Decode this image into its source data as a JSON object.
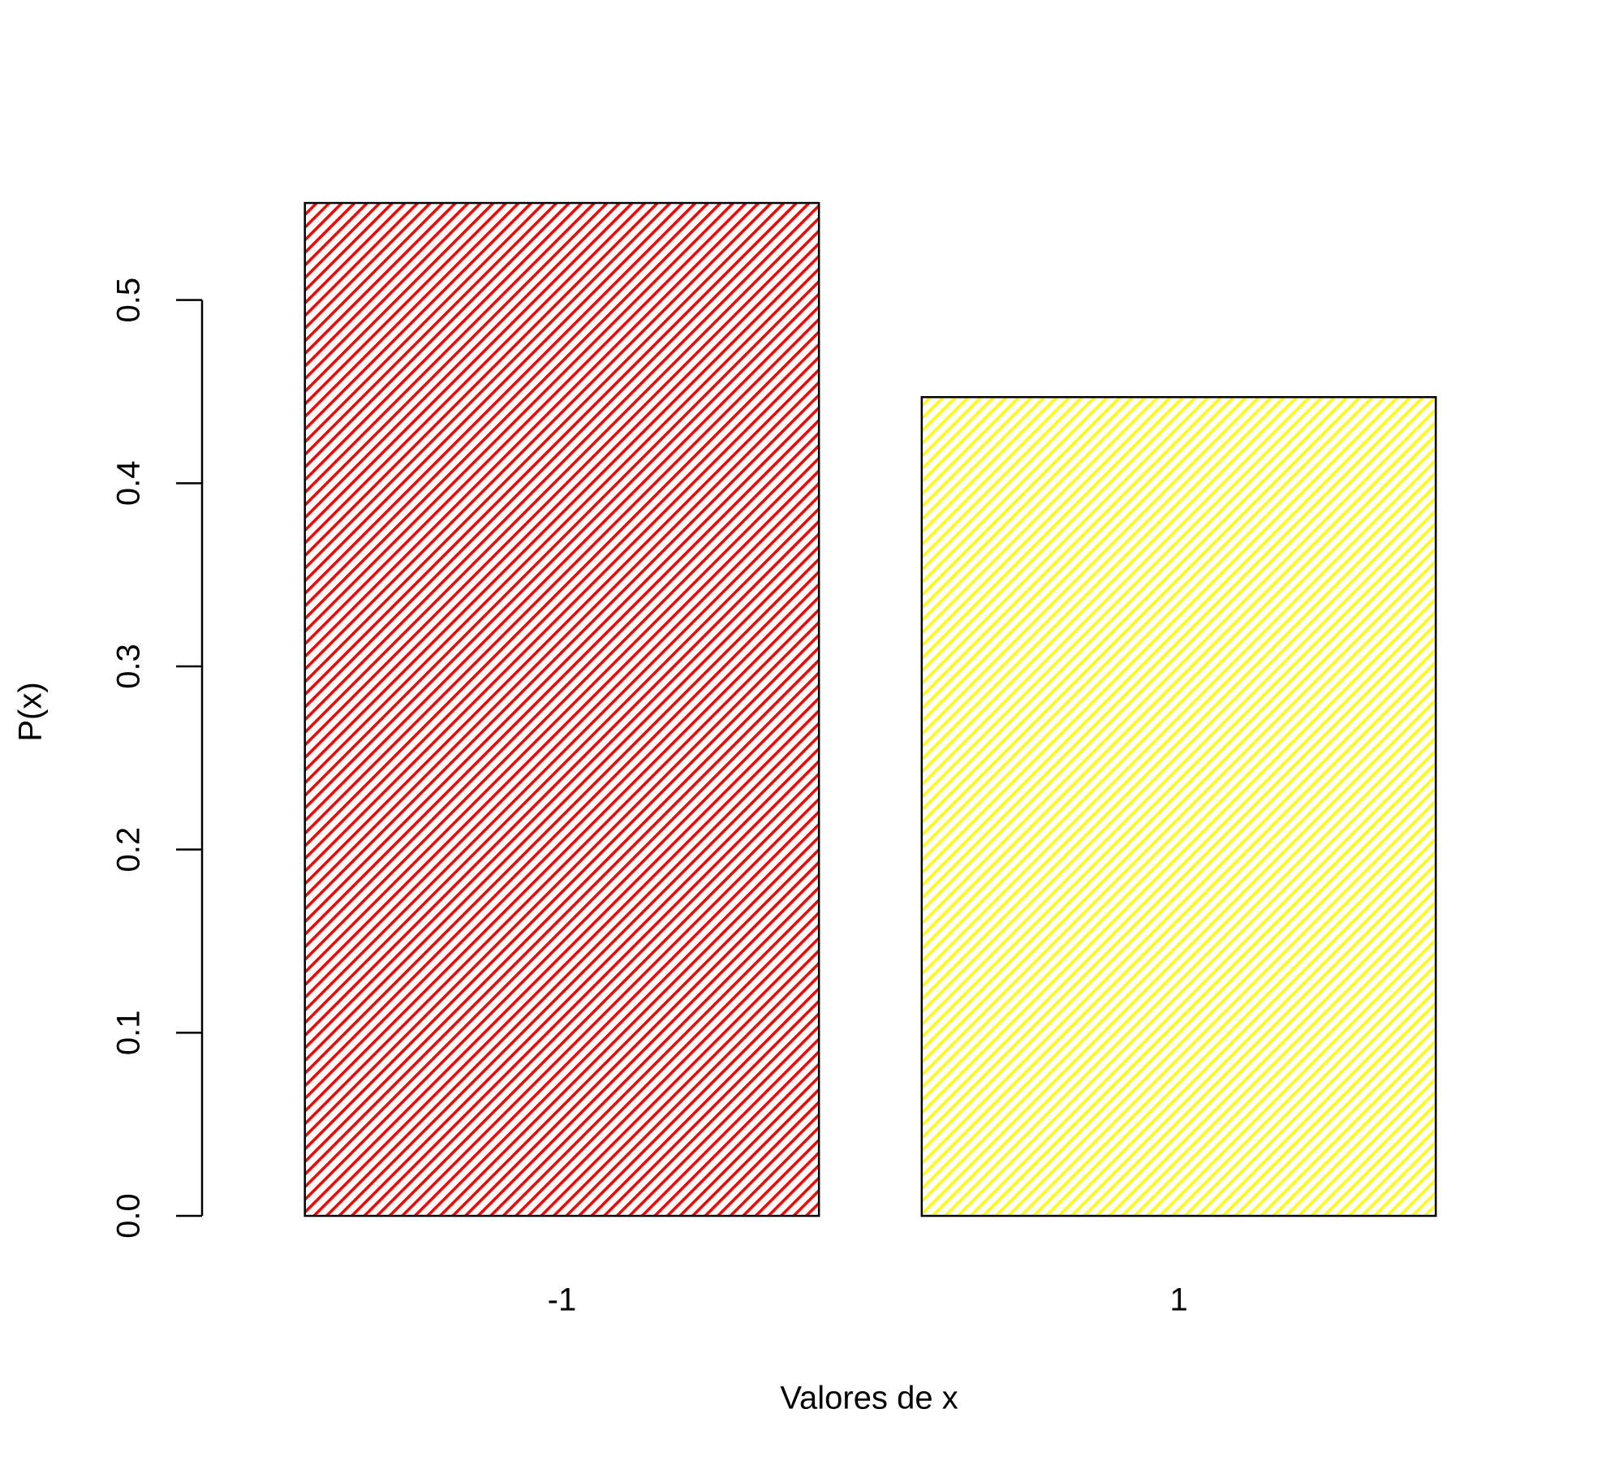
{
  "chart_data": {
    "type": "bar",
    "x_label": "Valores de x",
    "y_label": "P(x)",
    "categories": [
      "-1",
      "1"
    ],
    "values": [
      0.553,
      0.447
    ],
    "colors": [
      "#ff0000",
      "#ffff00"
    ],
    "hatch": true,
    "ylim": [
      0,
      0.6
    ],
    "yticks": [
      {
        "value": 0,
        "label": "0.0"
      },
      0.1,
      0.2,
      0.3,
      0.4,
      0.5
    ]
  }
}
